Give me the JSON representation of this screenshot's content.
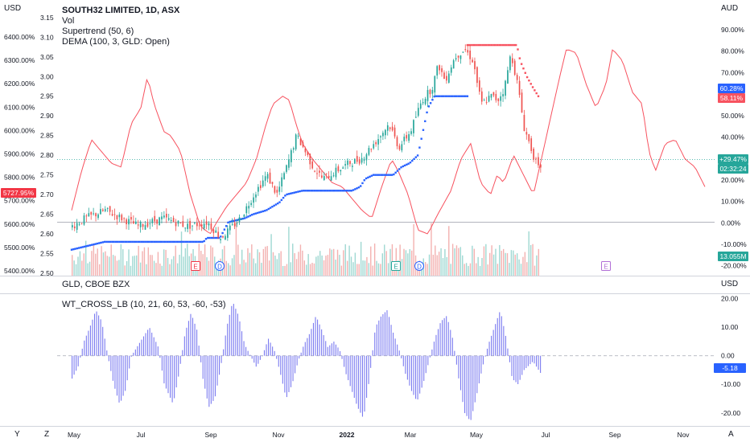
{
  "chart_data": [
    {
      "type": "line",
      "title": "SOUTH32 LIMITED, 1D, ASX",
      "legend": [
        "Vol",
        "Supertrend (50, 6)",
        "DEMA (100, 3, GLD: Open)"
      ],
      "x_ticks": [
        "May",
        "Jul",
        "Sep",
        "Nov",
        "2022",
        "Mar",
        "May",
        "Jul",
        "Sep",
        "Nov"
      ],
      "left_axis": {
        "unit": "USD",
        "ticks": [
          "6400.00%",
          "6300.00%",
          "6200.00%",
          "6100.00%",
          "6000.00%",
          "5900.00%",
          "5800.00%",
          "5700.00%",
          "5600.00%",
          "5500.00%",
          "5400.00%"
        ],
        "current_label": "5727.95%"
      },
      "price_axis": {
        "ticks": [
          "3.15",
          "3.10",
          "3.05",
          "3.00",
          "2.95",
          "2.90",
          "2.85",
          "2.80",
          "2.75",
          "2.70",
          "2.65",
          "2.60",
          "2.55",
          "2.50"
        ],
        "ylim": [
          2.49,
          3.17
        ]
      },
      "right_axis": {
        "unit": "AUD",
        "ticks": [
          "90.00%",
          "80.00%",
          "70.00%",
          "60.00%",
          "50.00%",
          "40.00%",
          "30.00%",
          "20.00%",
          "10.00%",
          "0.00%",
          "-10.00%",
          "-20.00%"
        ],
        "badges": [
          {
            "text": "60.28%",
            "color": "#2962ff"
          },
          {
            "text": "58.11%",
            "color": "#f7525f"
          },
          {
            "text": "+29.47%",
            "color": "#26a69a"
          },
          {
            "text": "02:32:24",
            "color": "#26a69a"
          },
          {
            "text": "13.055M",
            "color": "#26a69a"
          }
        ]
      },
      "event_markers": [
        "E",
        "D",
        "E",
        "D",
        "E"
      ],
      "series": [
        {
          "name": "SOUTH32 LIMITED",
          "style": "candles",
          "color_up": "#26a69a",
          "color_down": "#ef5350",
          "anchors": [
            [
              0,
              2.62
            ],
            [
              8,
              2.64
            ],
            [
              20,
              2.66
            ],
            [
              40,
              2.62
            ],
            [
              55,
              2.64
            ],
            [
              70,
              2.62
            ],
            [
              82,
              2.63
            ],
            [
              90,
              2.59
            ],
            [
              95,
              2.61
            ],
            [
              102,
              2.64
            ],
            [
              110,
              2.7
            ],
            [
              118,
              2.75
            ],
            [
              124,
              2.7
            ],
            [
              130,
              2.77
            ],
            [
              136,
              2.85
            ],
            [
              140,
              2.82
            ],
            [
              146,
              2.77
            ],
            [
              152,
              2.74
            ],
            [
              160,
              2.76
            ],
            [
              168,
              2.78
            ],
            [
              175,
              2.79
            ],
            [
              185,
              2.84
            ],
            [
              192,
              2.88
            ],
            [
              198,
              2.82
            ],
            [
              205,
              2.86
            ],
            [
              212,
              2.94
            ],
            [
              218,
              2.97
            ],
            [
              222,
              3.03
            ],
            [
              226,
              2.99
            ],
            [
              232,
              3.05
            ],
            [
              238,
              3.07
            ],
            [
              243,
              3.04
            ],
            [
              248,
              2.93
            ],
            [
              254,
              2.95
            ],
            [
              258,
              2.94
            ],
            [
              262,
              2.97
            ],
            [
              266,
              3.06
            ],
            [
              270,
              2.98
            ],
            [
              274,
              2.87
            ],
            [
              278,
              2.82
            ],
            [
              282,
              2.77
            ],
            [
              284,
              2.76
            ]
          ],
          "x_range": [
            0,
            284
          ]
        },
        {
          "name": "Supertrend (50, 6)",
          "style": "markers",
          "color_up": "#2962ff",
          "color_down": "#f7525f",
          "segments": [
            {
              "trend": "up",
              "points": [
                [
                  0,
                  2.56
                ],
                [
                  10,
                  2.57
                ],
                [
                  20,
                  2.58
                ],
                [
                  80,
                  2.58
                ],
                [
                  82,
                  2.59
                ],
                [
                  90,
                  2.59
                ],
                [
                  95,
                  2.63
                ],
                [
                  105,
                  2.64
                ],
                [
                  110,
                  2.65
                ],
                [
                  118,
                  2.66
                ],
                [
                  122,
                  2.67
                ],
                [
                  126,
                  2.68
                ],
                [
                  130,
                  2.7
                ],
                [
                  140,
                  2.71
                ],
                [
                  170,
                  2.71
                ],
                [
                  175,
                  2.72
                ],
                [
                  178,
                  2.74
                ],
                [
                  183,
                  2.75
                ],
                [
                  195,
                  2.75
                ],
                [
                  200,
                  2.77
                ],
                [
                  205,
                  2.78
                ],
                [
                  210,
                  2.8
                ],
                [
                  212,
                  2.84
                ],
                [
                  214,
                  2.88
                ],
                [
                  216,
                  2.92
                ],
                [
                  220,
                  2.95
                ],
                [
                  240,
                  2.95
                ]
              ]
            },
            {
              "trend": "down",
              "points": [
                [
                  240,
                  3.08
                ],
                [
                  270,
                  3.08
                ],
                [
                  272,
                  3.04
                ],
                [
                  276,
                  3.0
                ],
                [
                  280,
                  2.97
                ],
                [
                  283,
                  2.95
                ]
              ]
            }
          ]
        },
        {
          "name": "DEMA (100, 3, GLD: Open)",
          "style": "line",
          "color": "#f7525f",
          "anchors": [
            [
              0,
              2.66
            ],
            [
              6,
              2.76
            ],
            [
              12,
              2.84
            ],
            [
              18,
              2.81
            ],
            [
              24,
              2.78
            ],
            [
              30,
              2.77
            ],
            [
              36,
              2.88
            ],
            [
              42,
              2.92
            ],
            [
              46,
              3.0
            ],
            [
              50,
              2.93
            ],
            [
              56,
              2.86
            ],
            [
              60,
              2.85
            ],
            [
              66,
              2.81
            ],
            [
              72,
              2.7
            ],
            [
              78,
              2.62
            ],
            [
              84,
              2.6
            ],
            [
              88,
              2.63
            ],
            [
              94,
              2.67
            ],
            [
              100,
              2.7
            ],
            [
              106,
              2.73
            ],
            [
              112,
              2.79
            ],
            [
              118,
              2.88
            ],
            [
              122,
              2.93
            ],
            [
              128,
              2.95
            ],
            [
              132,
              2.94
            ],
            [
              136,
              2.88
            ],
            [
              140,
              2.83
            ],
            [
              146,
              2.79
            ],
            [
              152,
              2.76
            ],
            [
              158,
              2.73
            ],
            [
              164,
              2.72
            ],
            [
              170,
              2.69
            ],
            [
              176,
              2.66
            ],
            [
              182,
              2.64
            ],
            [
              188,
              2.72
            ],
            [
              194,
              2.79
            ],
            [
              198,
              2.76
            ],
            [
              204,
              2.7
            ],
            [
              210,
              2.61
            ],
            [
              216,
              2.6
            ],
            [
              222,
              2.65
            ],
            [
              230,
              2.71
            ],
            [
              236,
              2.79
            ],
            [
              242,
              2.83
            ],
            [
              248,
              2.73
            ],
            [
              254,
              2.7
            ],
            [
              258,
              2.75
            ],
            [
              262,
              2.73
            ],
            [
              268,
              2.8
            ],
            [
              274,
              2.75
            ],
            [
              280,
              2.7
            ],
            [
              288,
              2.85
            ],
            [
              296,
              3.0
            ],
            [
              300,
              3.07
            ],
            [
              306,
              3.06
            ],
            [
              312,
              2.98
            ],
            [
              318,
              2.92
            ],
            [
              324,
              2.98
            ],
            [
              328,
              3.07
            ],
            [
              334,
              3.04
            ],
            [
              340,
              2.96
            ],
            [
              346,
              2.93
            ],
            [
              350,
              2.81
            ],
            [
              354,
              2.76
            ],
            [
              360,
              2.83
            ],
            [
              366,
              2.84
            ],
            [
              372,
              2.79
            ],
            [
              378,
              2.77
            ],
            [
              384,
              2.72
            ]
          ],
          "x_range": [
            0,
            384
          ]
        },
        {
          "name": "Vol",
          "style": "volume",
          "color_up": "#26a69a",
          "color_down": "#ef5350"
        }
      ]
    },
    {
      "type": "line",
      "title": "GLD, CBOE BZX",
      "right_axis": {
        "unit": "USD"
      }
    },
    {
      "type": "bar",
      "title": "WT_CROSS_LB (10, 21, 60, 53, -60, -53)",
      "color": "#7b7bf0",
      "ylim": [
        -24,
        21
      ],
      "ticks": [
        "20.00",
        "10.00",
        "0.00",
        "-10.00",
        "-20.00"
      ],
      "current_label": "-5.18",
      "anchors": [
        [
          0,
          -8
        ],
        [
          4,
          -4
        ],
        [
          8,
          5
        ],
        [
          12,
          10
        ],
        [
          16,
          16
        ],
        [
          20,
          12
        ],
        [
          24,
          0
        ],
        [
          28,
          -10
        ],
        [
          32,
          -17
        ],
        [
          36,
          -12
        ],
        [
          40,
          0
        ],
        [
          46,
          5
        ],
        [
          52,
          10
        ],
        [
          58,
          3
        ],
        [
          62,
          -10
        ],
        [
          68,
          -17
        ],
        [
          72,
          -6
        ],
        [
          76,
          8
        ],
        [
          80,
          15
        ],
        [
          84,
          9
        ],
        [
          88,
          -8
        ],
        [
          92,
          -18
        ],
        [
          96,
          -15
        ],
        [
          100,
          -4
        ],
        [
          104,
          10
        ],
        [
          108,
          19
        ],
        [
          112,
          14
        ],
        [
          116,
          4
        ],
        [
          120,
          0
        ],
        [
          124,
          -4
        ],
        [
          128,
          0
        ],
        [
          132,
          6
        ],
        [
          136,
          2
        ],
        [
          140,
          -6
        ],
        [
          144,
          -15
        ],
        [
          148,
          -10
        ],
        [
          152,
          -2
        ],
        [
          156,
          4
        ],
        [
          160,
          8
        ],
        [
          164,
          14
        ],
        [
          168,
          9
        ],
        [
          172,
          3
        ],
        [
          176,
          5
        ],
        [
          180,
          2
        ],
        [
          184,
          -6
        ],
        [
          188,
          -12
        ],
        [
          192,
          -18
        ],
        [
          196,
          -22
        ],
        [
          200,
          -8
        ],
        [
          204,
          10
        ],
        [
          208,
          14
        ],
        [
          212,
          16
        ],
        [
          216,
          8
        ],
        [
          220,
          2
        ],
        [
          224,
          -6
        ],
        [
          228,
          -12
        ],
        [
          232,
          -16
        ],
        [
          236,
          -10
        ],
        [
          240,
          -2
        ],
        [
          244,
          6
        ],
        [
          248,
          12
        ],
        [
          252,
          14
        ],
        [
          256,
          6
        ],
        [
          260,
          -8
        ],
        [
          264,
          -20
        ],
        [
          268,
          -23
        ],
        [
          272,
          -14
        ],
        [
          276,
          -4
        ],
        [
          280,
          4
        ],
        [
          284,
          10
        ],
        [
          288,
          16
        ],
        [
          292,
          6
        ],
        [
          296,
          -8
        ],
        [
          300,
          -10
        ],
        [
          304,
          -5
        ],
        [
          310,
          -2
        ],
        [
          315,
          -6
        ]
      ],
      "x_range": [
        0,
        315
      ]
    }
  ],
  "footer": {
    "left_tick": "Y",
    "left_icon": "Z",
    "right_icon": "A"
  }
}
